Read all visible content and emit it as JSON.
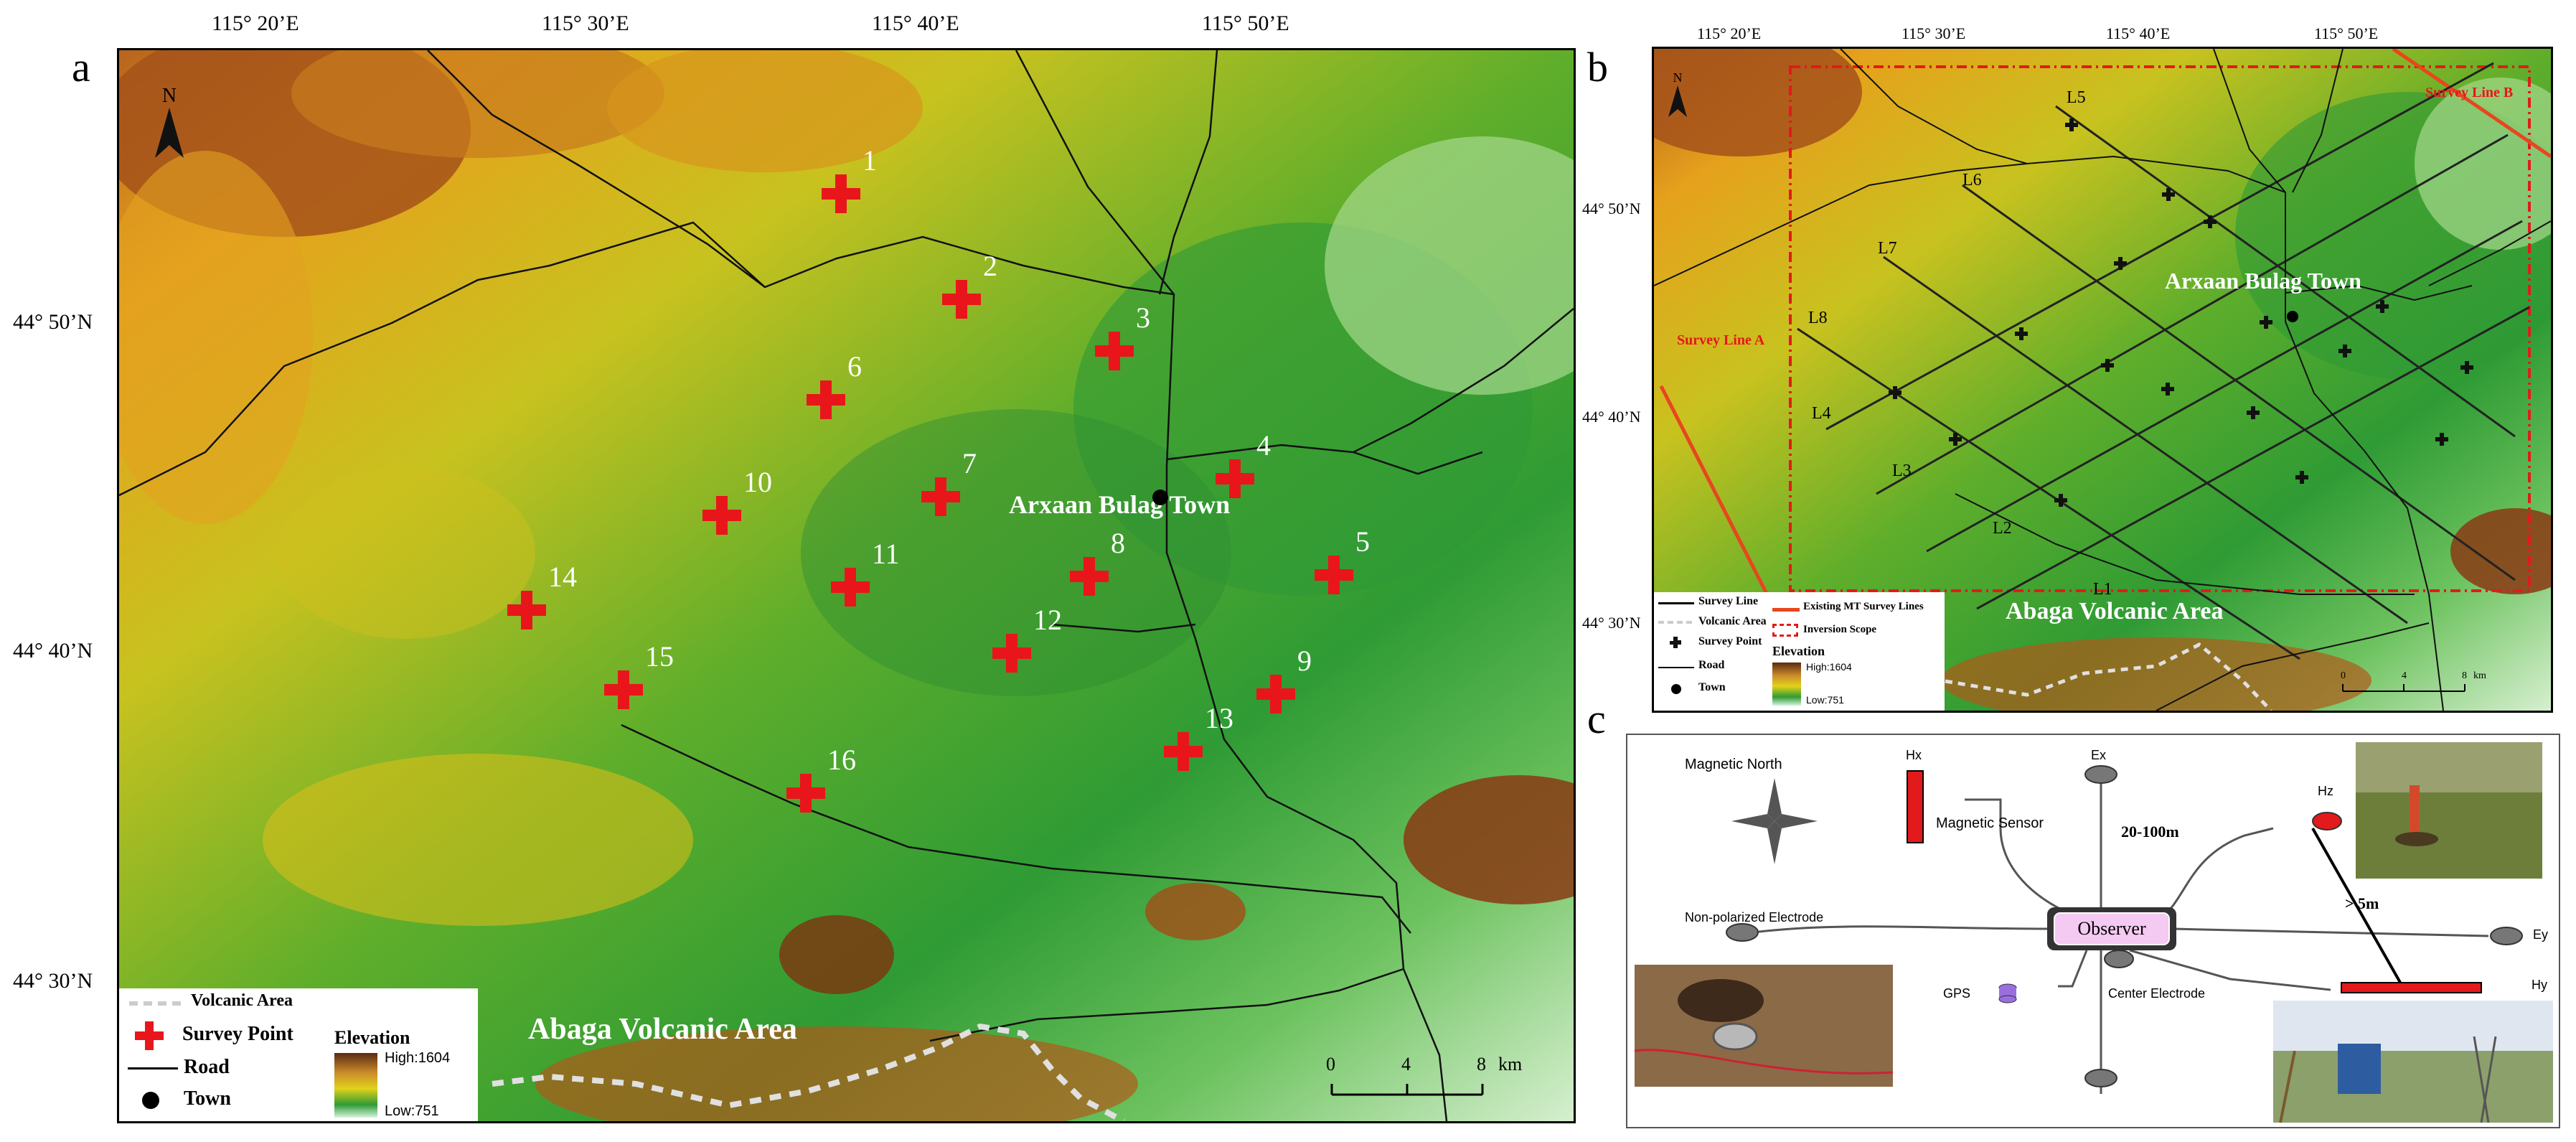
{
  "panels": {
    "a": {
      "letter": "a",
      "lon_ticks": [
        "115° 20’E",
        "115° 30’E",
        "115° 40’E",
        "115° 50’E"
      ],
      "lat_ticks": [
        "44° 50’N",
        "44° 40’N",
        "44° 30’N"
      ],
      "north_label": "N",
      "town_label": "Arxaan Bulag Town",
      "volcanic_label": "Abaga Volcanic Area",
      "survey_points": [
        "1",
        "2",
        "3",
        "4",
        "5",
        "6",
        "7",
        "8",
        "9",
        "10",
        "11",
        "12",
        "13",
        "14",
        "15",
        "16"
      ],
      "scale": {
        "zero": "0",
        "mid": "4",
        "end": "8",
        "unit": "km"
      },
      "legend": {
        "volcanic": "Volcanic Area",
        "survey_point": "Survey Point",
        "road": "Road",
        "town": "Town",
        "elevation_title": "Elevation",
        "high": "High:1604",
        "low": "Low:751"
      }
    },
    "b": {
      "letter": "b",
      "lon_ticks": [
        "115° 20’E",
        "115° 30’E",
        "115° 40’E",
        "115° 50’E"
      ],
      "lat_ticks": [
        "44° 50’N",
        "44° 40’N",
        "44° 30’N"
      ],
      "north_label": "N",
      "town_label": "Arxaan Bulag Town",
      "volcanic_label": "Abaga Volcanic Area",
      "survey_line_a": "Survey Line A",
      "survey_line_b": "Survey Line B",
      "lines": [
        "L1",
        "L2",
        "L3",
        "L4",
        "L5",
        "L6",
        "L7",
        "L8"
      ],
      "scale": {
        "zero": "0",
        "mid": "4",
        "end": "8",
        "unit": "km"
      },
      "legend": {
        "survey_line": "Survey Line",
        "volcanic": "Volcanic Area",
        "survey_point": "Survey Point",
        "road": "Road",
        "town": "Town",
        "existing_mt": "Existing MT Survey Lines",
        "inversion": "Inversion Scope",
        "elevation_title": "Elevation",
        "high": "High:1604",
        "low": "Low:751"
      }
    },
    "c": {
      "letter": "c",
      "magnetic_north": "Magnetic North",
      "hx": "Hx",
      "ex": "Ex",
      "hz": "Hz",
      "ey": "Ey",
      "hy": "Hy",
      "magnetic_sensor": "Magnetic Sensor",
      "distance_1": "20-100m",
      "distance_2": "> 5m",
      "observer": "Observer",
      "non_polarized": "Non-polarized Electrode",
      "gps": "GPS",
      "center_electrode": "Center Electrode"
    }
  },
  "colors": {
    "survey_point": "#e8161b",
    "line_red": "#e8461e",
    "observer_fill": "#f4c9f2",
    "hx_red": "#e31a1c"
  }
}
